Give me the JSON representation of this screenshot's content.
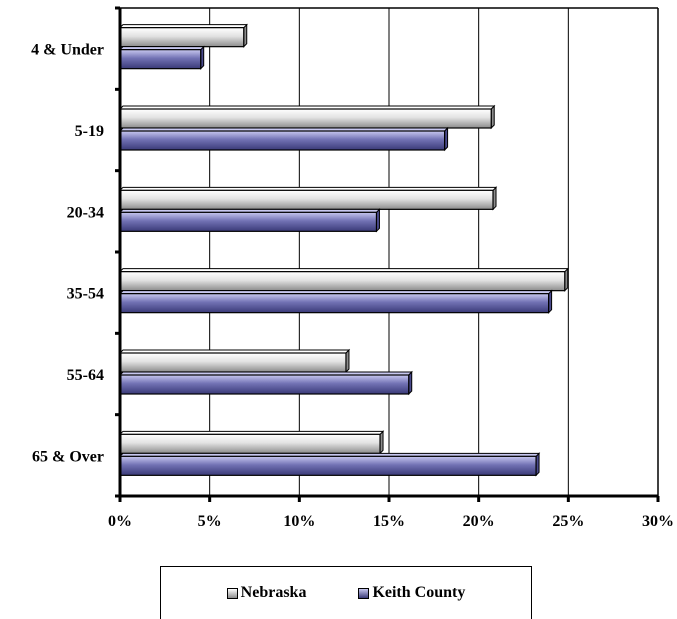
{
  "chart_data": {
    "type": "bar",
    "orientation": "horizontal",
    "categories": [
      "4 & Under",
      "5-19",
      "20-34",
      "35-54",
      "55-64",
      "65 & Over"
    ],
    "series": [
      {
        "name": "Nebraska",
        "values": [
          6.9,
          20.7,
          20.8,
          24.8,
          12.6,
          14.5
        ],
        "color": "#8c8c8c",
        "highlight": "#ffffff"
      },
      {
        "name": "Keith County",
        "values": [
          4.5,
          18.1,
          14.3,
          23.9,
          16.1,
          23.2
        ],
        "color": "#4a4a8c",
        "highlight": "#c8c8f0"
      }
    ],
    "x_ticks": [
      "0%",
      "5%",
      "10%",
      "15%",
      "20%",
      "25%",
      "30%"
    ],
    "xlim": [
      0,
      30
    ],
    "grid": "vertical",
    "legend_position": "bottom",
    "title": "",
    "xlabel": "",
    "ylabel": ""
  }
}
